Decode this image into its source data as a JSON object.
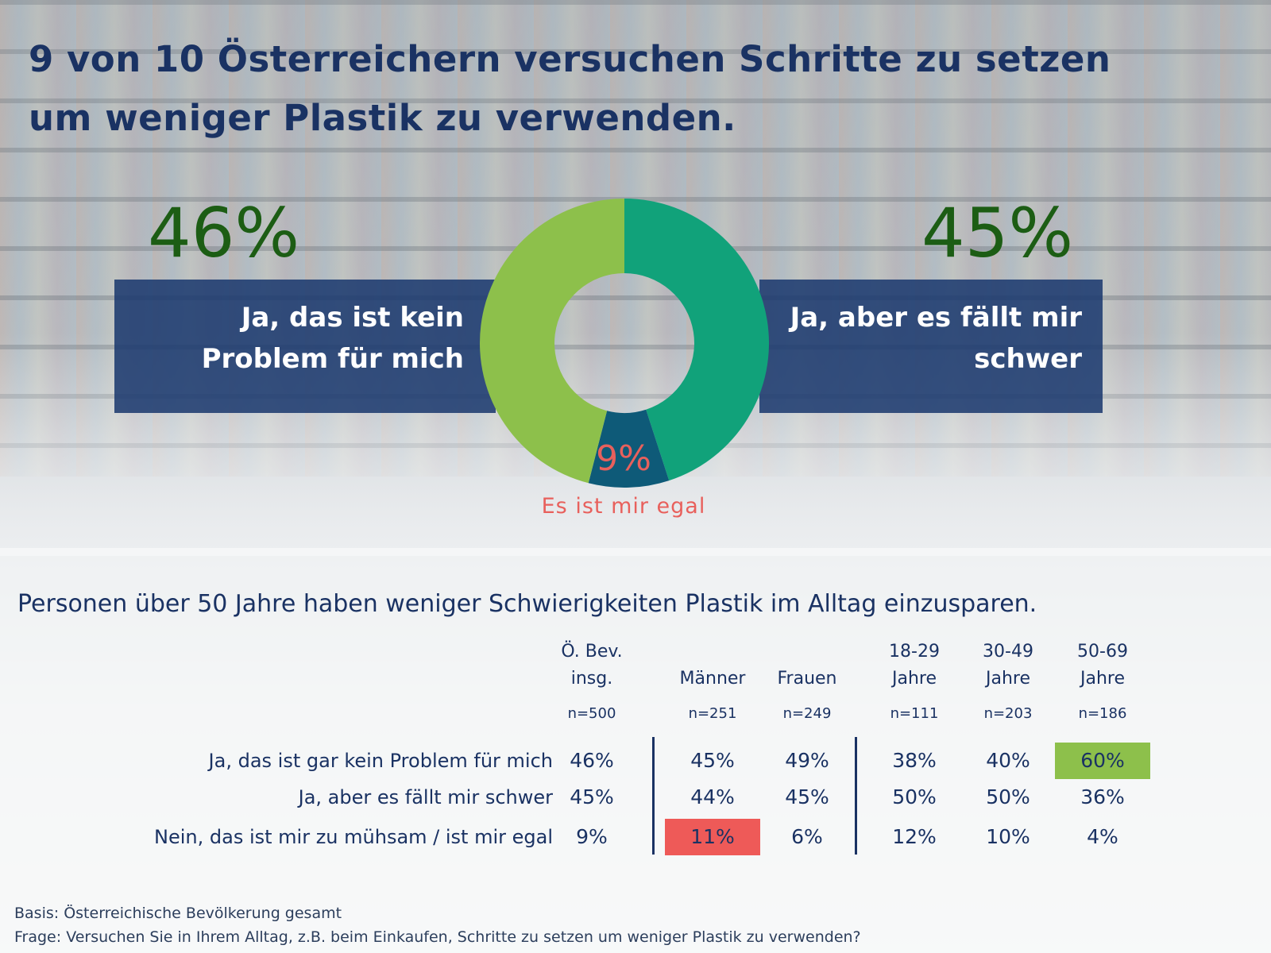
{
  "title": "9 von 10 Österreichern versuchen Schritte zu setzen um weniger Plastik zu verwenden.",
  "colors": {
    "navy": "#1a3263",
    "dark_green": "#1c5d14",
    "light_green": "#8dc04b",
    "teal_green": "#11a27a",
    "dark_teal": "#0e5a78",
    "coral": "#e8605c",
    "highlight_green": "#8dc04b",
    "highlight_red": "#ee5a58"
  },
  "chart_data": [
    {
      "type": "pie",
      "donut": true,
      "slices": [
        {
          "label": "Ja, aber es fällt mir schwer",
          "value": 45,
          "display": "45%",
          "color": "#11a27a"
        },
        {
          "label": "Es ist mir egal",
          "value": 9,
          "display": "9%",
          "color": "#0e5a78"
        },
        {
          "label": "Ja, das ist kein Problem für mich",
          "value": 46,
          "display": "46%",
          "color": "#8dc04b"
        }
      ]
    },
    {
      "type": "table",
      "title": "Personen über 50 Jahre haben weniger Schwierigkeiten Plastik im Alltag einzusparen.",
      "columns": [
        {
          "label": "Ö. Bev. insg.",
          "lines": [
            "Ö. Bev.",
            "insg."
          ],
          "n": "n=500"
        },
        {
          "label": "Männer",
          "lines": [
            "Männer"
          ],
          "n": "n=251"
        },
        {
          "label": "Frauen",
          "lines": [
            "Frauen"
          ],
          "n": "n=249"
        },
        {
          "label": "18-29 Jahre",
          "lines": [
            "18-29",
            "Jahre"
          ],
          "n": "n=111"
        },
        {
          "label": "30-49 Jahre",
          "lines": [
            "30-49",
            "Jahre"
          ],
          "n": "n=203"
        },
        {
          "label": "50-69 Jahre",
          "lines": [
            "50-69",
            "Jahre"
          ],
          "n": "n=186"
        }
      ],
      "rows": [
        {
          "label": "Ja, das ist gar kein Problem für mich",
          "values": [
            46,
            45,
            49,
            38,
            40,
            60
          ],
          "display": [
            "46%",
            "45%",
            "49%",
            "38%",
            "40%",
            "60%"
          ]
        },
        {
          "label": "Ja, aber es fällt mir schwer",
          "values": [
            45,
            44,
            45,
            50,
            50,
            36
          ],
          "display": [
            "45%",
            "44%",
            "45%",
            "50%",
            "50%",
            "36%"
          ]
        },
        {
          "label": "Nein, das ist mir zu mühsam / ist mir egal",
          "values": [
            9,
            11,
            6,
            12,
            10,
            4
          ],
          "display": [
            "9%",
            "11%",
            "6%",
            "12%",
            "10%",
            "4%"
          ]
        }
      ],
      "highlights": [
        {
          "row": 0,
          "col": 5,
          "color": "#8dc04b"
        },
        {
          "row": 2,
          "col": 1,
          "color": "#ee5a58"
        }
      ]
    }
  ],
  "left_big": {
    "pct": "46%",
    "lines": [
      "Ja, das ist kein",
      "Problem für mich"
    ]
  },
  "right_big": {
    "pct": "45%",
    "lines": [
      "Ja, aber es fällt mir",
      "schwer"
    ]
  },
  "donut_center": {
    "pct": "9%",
    "caption": "Es ist mir egal"
  },
  "footnotes": {
    "basis": "Basis: Österreichische Bevölkerung gesamt",
    "frage": "Frage: Versuchen Sie in Ihrem Alltag, z.B. beim Einkaufen, Schritte zu setzen um weniger Plastik zu verwenden?"
  }
}
